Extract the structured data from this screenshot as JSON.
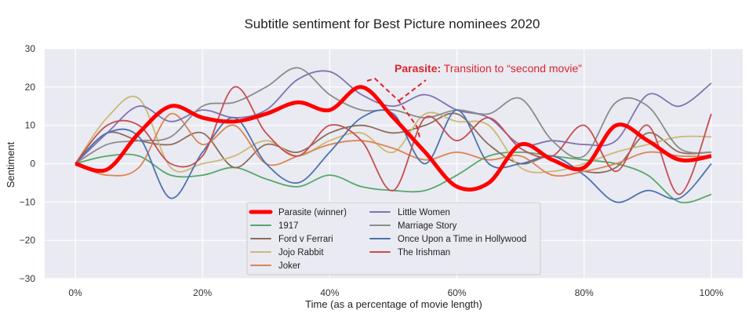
{
  "chart_data": {
    "type": "line",
    "title": "Subtitle sentiment for Best Picture nominees 2020",
    "xlabel": "Time (as a percentage of movie length)",
    "ylabel": "Sentiment",
    "xlim": [
      0,
      100
    ],
    "ylim": [
      -30,
      30
    ],
    "x_ticks": [
      "0%",
      "20%",
      "40%",
      "60%",
      "80%",
      "100%"
    ],
    "y_ticks": [
      "30",
      "20",
      "10",
      "0",
      "−10",
      "−20",
      "−30"
    ],
    "grid": true,
    "legend_placement": "lower-center",
    "x": [
      0,
      5,
      10,
      15,
      20,
      25,
      30,
      35,
      40,
      45,
      50,
      55,
      60,
      65,
      70,
      75,
      80,
      85,
      90,
      95,
      100
    ],
    "series": [
      {
        "name": "Parasite (winner)",
        "color": "#ff0000",
        "highlight": true,
        "values": [
          0,
          -1.5,
          8,
          15,
          12,
          11,
          13,
          16,
          14,
          20,
          12,
          3,
          -6,
          -5,
          5,
          1,
          -1,
          10,
          6,
          1,
          2
        ]
      },
      {
        "name": "1917",
        "color": "#55a868",
        "values": [
          0,
          2,
          2,
          -3,
          -3,
          -1,
          -4,
          -6,
          -3,
          -6,
          -7,
          -7,
          -3,
          2,
          3,
          2,
          1,
          0,
          -3,
          -10,
          -8
        ]
      },
      {
        "name": "Ford v Ferrari",
        "color": "#8c6d5a",
        "values": [
          0,
          8,
          6,
          5,
          8,
          -1,
          5,
          3,
          8,
          10,
          8,
          10,
          13,
          5,
          0,
          2,
          -2,
          -1,
          8,
          3,
          3
        ]
      },
      {
        "name": "Jojo Rabbit",
        "color": "#ccb974",
        "values": [
          0,
          12,
          17,
          -1,
          0,
          2,
          6,
          2,
          6,
          8,
          3,
          13,
          11,
          10,
          -1,
          -2,
          0,
          3,
          5,
          7,
          7
        ]
      },
      {
        "name": "Joker",
        "color": "#dd8452",
        "values": [
          0,
          -3,
          -1,
          13,
          5,
          10,
          0,
          2,
          5,
          6,
          4,
          1,
          3,
          1,
          2,
          -3,
          -2,
          0,
          3,
          2,
          2
        ]
      },
      {
        "name": "Little Women",
        "color": "#8172b3",
        "values": [
          0,
          8,
          15,
          11,
          14,
          12,
          14,
          22,
          24,
          18,
          15,
          18,
          14,
          12,
          5,
          6,
          5,
          6,
          18,
          15,
          21
        ]
      },
      {
        "name": "Marriage Story",
        "color": "#8c8c8c",
        "values": [
          0,
          5,
          6,
          7,
          15,
          16,
          20,
          25,
          18,
          14,
          14,
          12,
          14,
          13,
          17,
          6,
          2,
          16,
          15,
          4,
          3
        ]
      },
      {
        "name": "Once Upon a Time in Hollywood",
        "color": "#4c72b0",
        "values": [
          0,
          8,
          7,
          -9,
          3,
          12,
          0,
          -5,
          3,
          12,
          13,
          0,
          14,
          0,
          0,
          2,
          -3,
          -10,
          -7,
          -9,
          0
        ]
      },
      {
        "name": "The Irishman",
        "color": "#c44e52",
        "values": [
          0,
          10,
          10,
          0,
          2,
          20,
          8,
          2,
          10,
          6,
          -7,
          12,
          6,
          12,
          4,
          2,
          10,
          -2,
          10,
          -8,
          13
        ]
      }
    ],
    "annotation": {
      "bold": "Parasite:",
      "text": " Transition to “second movie”",
      "color": "#d9262e"
    }
  }
}
